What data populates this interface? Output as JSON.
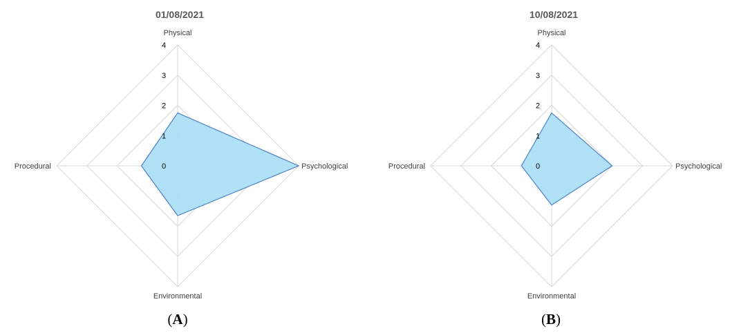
{
  "chart_data": [
    {
      "type": "radar",
      "title": "01/08/2021",
      "panel_label": "A",
      "axes": [
        "Physical",
        "Psychological",
        "Environmental",
        "Procedural"
      ],
      "rlim": [
        0,
        4
      ],
      "ticks": [
        "0",
        "1",
        "2",
        "3",
        "4"
      ],
      "series": [
        {
          "values": [
            1.75,
            4.0,
            1.65,
            1.2
          ]
        }
      ],
      "fill_color": "#A9DEF5",
      "line_color": "#4C80C8",
      "grid_color": "#D9D9D9",
      "grid": true,
      "legend": false
    },
    {
      "type": "radar",
      "title": "10/08/2021",
      "panel_label": "B",
      "axes": [
        "Physical",
        "Psychological",
        "Environmental",
        "Procedural"
      ],
      "rlim": [
        0,
        4
      ],
      "ticks": [
        "0",
        "1",
        "2",
        "3",
        "4"
      ],
      "series": [
        {
          "values": [
            1.75,
            2.0,
            1.3,
            1.0
          ]
        }
      ],
      "fill_color": "#A9DEF5",
      "line_color": "#4C80C8",
      "grid_color": "#D9D9D9",
      "grid": true,
      "legend": false
    }
  ]
}
